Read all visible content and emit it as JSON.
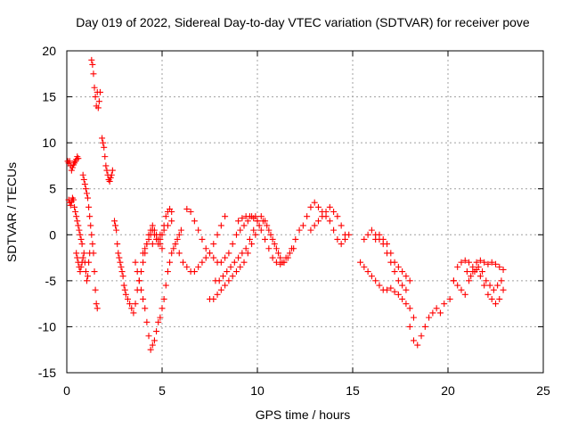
{
  "chart_data": {
    "type": "scatter",
    "title": "Day 019 of 2022, Sidereal Day-to-day VTEC variation (SDTVAR) for receiver pove",
    "xlabel": "GPS time / hours",
    "ylabel": "SDTVAR / TECUs",
    "xlim": [
      0,
      25
    ],
    "ylim": [
      -15,
      20
    ],
    "xticks": [
      0,
      5,
      10,
      15,
      20,
      25
    ],
    "yticks": [
      -15,
      -10,
      -5,
      0,
      5,
      10,
      15,
      20
    ],
    "xtick_labels": [
      "0",
      "5",
      "10",
      "15",
      "20",
      "25"
    ],
    "ytick_labels": [
      "-15",
      "-10",
      "-5",
      "0",
      "5",
      "10",
      "15",
      "20"
    ],
    "grid": true,
    "marker": "+",
    "color": "#ff0000",
    "series": [
      {
        "name": "SDTVAR",
        "x": [
          0.05,
          0.1,
          0.15,
          0.2,
          0.25,
          0.3,
          0.35,
          0.4,
          0.45,
          0.5,
          0.55,
          0.6,
          0.1,
          0.15,
          0.2,
          0.25,
          0.3,
          0.35,
          0.4,
          0.45,
          0.5,
          0.55,
          0.6,
          0.65,
          0.7,
          0.75,
          0.8,
          0.85,
          0.9,
          0.95,
          1.0,
          1.05,
          1.1,
          1.15,
          1.2,
          1.25,
          1.3,
          0.5,
          0.55,
          0.6,
          0.65,
          0.7,
          0.75,
          0.8,
          0.85,
          0.9,
          0.95,
          1.0,
          1.05,
          1.1,
          1.15,
          1.2,
          1.3,
          1.35,
          1.4,
          1.45,
          1.5,
          1.55,
          1.6,
          1.65,
          1.7,
          1.75,
          1.35,
          1.4,
          1.45,
          1.5,
          1.55,
          1.6,
          1.85,
          1.9,
          1.95,
          2.0,
          2.05,
          2.1,
          2.15,
          2.2,
          2.25,
          2.3,
          2.35,
          2.4,
          2.5,
          2.55,
          2.6,
          2.65,
          2.7,
          2.75,
          2.8,
          2.85,
          2.9,
          2.95,
          3.0,
          3.05,
          3.1,
          3.2,
          3.3,
          3.4,
          3.5,
          3.6,
          3.7,
          3.8,
          3.9,
          4.0,
          4.1,
          4.2,
          4.3,
          4.4,
          4.5,
          4.6,
          4.7,
          4.8,
          4.9,
          5.0,
          3.6,
          3.7,
          3.8,
          3.9,
          4.0,
          4.1,
          4.2,
          4.3,
          4.4,
          4.5,
          4.6,
          4.7,
          4.8,
          4.9,
          5.0,
          5.1,
          5.2,
          5.3,
          5.4,
          5.5,
          5.6,
          5.7,
          5.8,
          5.9,
          6.0,
          4.0,
          4.1,
          4.2,
          4.3,
          4.4,
          4.5,
          4.6,
          4.7,
          4.8,
          4.9,
          5.0,
          5.1,
          5.2,
          5.3,
          5.4,
          5.5,
          4.5,
          4.7,
          4.9,
          5.1,
          5.3,
          5.5,
          5.7,
          5.9,
          6.1,
          6.3,
          6.5,
          6.7,
          6.9,
          7.1,
          7.3,
          7.5,
          7.7,
          7.9,
          8.1,
          8.3,
          6.3,
          6.5,
          6.7,
          6.9,
          7.1,
          7.3,
          7.5,
          7.7,
          7.9,
          8.1,
          8.3,
          8.5,
          8.7,
          8.9,
          9.1,
          9.3,
          9.5,
          9.7,
          9.9,
          7.5,
          7.7,
          7.9,
          8.1,
          8.3,
          8.5,
          8.7,
          8.9,
          9.1,
          9.3,
          9.5,
          9.7,
          9.9,
          10.1,
          10.3,
          10.5,
          10.7,
          10.9,
          11.1,
          11.3,
          11.5,
          11.7,
          11.9,
          7.8,
          8.0,
          8.2,
          8.4,
          8.6,
          8.8,
          9.0,
          9.2,
          9.4,
          9.6,
          9.8,
          10.0,
          10.2,
          10.4,
          10.6,
          10.8,
          11.0,
          11.2,
          11.4,
          9.0,
          9.2,
          9.4,
          9.6,
          9.8,
          10.0,
          10.2,
          10.4,
          10.6,
          10.8,
          11.0,
          11.2,
          11.4,
          11.6,
          11.8,
          12.0,
          12.2,
          12.4,
          12.6,
          12.8,
          13.0,
          13.2,
          13.4,
          13.6,
          13.8,
          14.0,
          14.2,
          14.4,
          14.6,
          14.8,
          12.8,
          13.0,
          13.2,
          13.4,
          13.6,
          13.8,
          14.0,
          14.2,
          14.4,
          14.6,
          15.4,
          15.6,
          15.8,
          16.0,
          16.2,
          16.4,
          16.6,
          16.8,
          17.0,
          17.2,
          17.4,
          17.6,
          17.8,
          18.0,
          18.2,
          15.6,
          15.8,
          16.0,
          16.2,
          16.4,
          16.6,
          16.8,
          17.0,
          17.2,
          17.4,
          17.6,
          17.8,
          16.2,
          16.4,
          16.6,
          16.8,
          17.0,
          17.2,
          17.4,
          17.6,
          17.8,
          18.0,
          18.0,
          18.2,
          18.4,
          18.6,
          18.8,
          19.0,
          19.2,
          19.4,
          19.6,
          19.8,
          20.1,
          20.3,
          20.5,
          20.7,
          20.9,
          21.1,
          21.3,
          21.5,
          21.7,
          21.9,
          22.1,
          22.3,
          22.5,
          22.7,
          22.9,
          20.3,
          20.5,
          20.7,
          20.9,
          21.1,
          21.3,
          21.5,
          21.7,
          21.9,
          22.1,
          22.3,
          22.5,
          22.7,
          22.9,
          21.0,
          21.2,
          21.4,
          21.6,
          21.8,
          22.0,
          22.2,
          22.4,
          22.6,
          22.8
        ],
        "y": [
          8.0,
          7.8,
          8.0,
          7.5,
          7.0,
          7.3,
          7.6,
          7.8,
          8.0,
          8.2,
          8.5,
          8.3,
          3.8,
          3.5,
          3.2,
          3.6,
          4.0,
          3.8,
          3.0,
          2.5,
          2.0,
          1.5,
          1.0,
          0.5,
          0.0,
          -0.5,
          -1.0,
          6.5,
          6.0,
          5.5,
          5.0,
          4.5,
          4.0,
          3.0,
          2.0,
          1.0,
          0.0,
          -2.0,
          -2.5,
          -3.0,
          -3.5,
          -4.0,
          -3.5,
          -3.0,
          -2.5,
          -2.0,
          -3.0,
          -4.0,
          -5.0,
          -4.5,
          -3.0,
          -2.0,
          19.0,
          18.5,
          17.5,
          16.0,
          15.0,
          14.0,
          15.5,
          13.8,
          14.5,
          15.5,
          -1.0,
          -2.0,
          -4.0,
          -6.0,
          -7.5,
          -8.0,
          10.5,
          10.0,
          9.5,
          8.5,
          7.5,
          7.0,
          6.5,
          6.0,
          5.8,
          6.2,
          6.5,
          7.0,
          1.5,
          1.0,
          0.5,
          -1.0,
          -2.0,
          -2.5,
          -3.0,
          -3.5,
          -4.0,
          -4.5,
          -5.5,
          -6.0,
          -6.5,
          -7.0,
          -7.5,
          -8.0,
          -8.5,
          -7.5,
          -6.0,
          -5.0,
          -4.0,
          -3.0,
          -2.0,
          -1.0,
          0.0,
          0.5,
          1.0,
          0.5,
          0.0,
          -0.5,
          -1.0,
          -1.5,
          -3.0,
          -4.0,
          -5.0,
          -6.0,
          -7.0,
          -8.0,
          -9.5,
          -11.0,
          -12.5,
          -12.0,
          -11.5,
          -10.5,
          -9.5,
          -9.0,
          -8.0,
          -7.0,
          -5.5,
          -4.0,
          -3.0,
          -2.0,
          -1.5,
          -1.0,
          -0.5,
          0.0,
          0.5,
          -2.0,
          -1.5,
          -1.0,
          -0.5,
          0.0,
          0.5,
          0.0,
          -0.5,
          -1.0,
          -0.5,
          0.0,
          1.0,
          2.0,
          2.5,
          2.8,
          2.5,
          -1.0,
          -0.5,
          0.0,
          0.5,
          1.0,
          1.5,
          -1.0,
          -2.0,
          -3.0,
          -3.5,
          -4.0,
          -4.0,
          -3.5,
          -3.0,
          -2.5,
          -2.0,
          -1.0,
          0.0,
          1.0,
          2.0,
          2.8,
          2.5,
          1.5,
          0.5,
          -0.5,
          -1.5,
          -2.0,
          -2.5,
          -3.0,
          -3.0,
          -2.5,
          -2.0,
          -1.0,
          0.0,
          0.5,
          1.0,
          1.5,
          2.0,
          2.0,
          -7.0,
          -7.0,
          -6.5,
          -6.0,
          -5.5,
          -5.0,
          -4.5,
          -4.0,
          -3.5,
          -3.0,
          -2.0,
          -1.0,
          0.0,
          1.0,
          1.5,
          1.0,
          0.0,
          -1.0,
          -2.0,
          -3.0,
          -2.5,
          -2.0,
          -1.5,
          -5.0,
          -5.0,
          -4.5,
          -4.0,
          -3.5,
          -3.0,
          -2.5,
          -2.0,
          -1.5,
          -0.5,
          0.5,
          1.5,
          2.0,
          1.5,
          0.5,
          -0.5,
          -1.5,
          -2.5,
          -3.0,
          1.5,
          1.8,
          2.0,
          2.0,
          1.8,
          1.5,
          0.5,
          -0.5,
          -1.5,
          -2.5,
          -3.0,
          -3.2,
          -3.0,
          -2.5,
          -1.5,
          -0.5,
          0.5,
          1.0,
          2.0,
          3.0,
          3.5,
          3.0,
          2.5,
          2.0,
          1.5,
          0.5,
          -0.5,
          -1.0,
          -0.5,
          0.0,
          0.5,
          1.0,
          1.5,
          2.0,
          2.5,
          3.0,
          2.5,
          2.0,
          1.0,
          0.0,
          -3.0,
          -3.5,
          -4.0,
          -4.5,
          -5.0,
          -5.5,
          -6.0,
          -6.0,
          -5.8,
          -6.2,
          -6.5,
          -7.0,
          -7.5,
          -8.0,
          -9.0,
          -0.5,
          0.0,
          0.5,
          0.0,
          -0.5,
          -1.0,
          -2.0,
          -3.0,
          -4.0,
          -5.0,
          -5.5,
          -6.0,
          -0.5,
          0.0,
          -0.5,
          -1.0,
          -2.0,
          -3.0,
          -3.5,
          -4.0,
          -4.5,
          -5.0,
          -10.0,
          -11.5,
          -12.0,
          -11.0,
          -10.0,
          -9.0,
          -8.5,
          -8.0,
          -8.5,
          -7.5,
          -7.0,
          -5.0,
          -3.5,
          -3.0,
          -2.8,
          -3.0,
          -3.5,
          -3.0,
          -2.8,
          -3.0,
          -3.2,
          -3.0,
          -3.2,
          -3.5,
          -3.8,
          -5.0,
          -5.5,
          -6.0,
          -6.5,
          -5.0,
          -4.0,
          -3.8,
          -4.5,
          -5.5,
          -6.5,
          -7.0,
          -7.5,
          -7.0,
          -6.0,
          -4.0,
          -4.5,
          -4.0,
          -3.5,
          -4.0,
          -5.0,
          -5.5,
          -6.0,
          -5.5,
          -5.0
        ]
      }
    ]
  }
}
